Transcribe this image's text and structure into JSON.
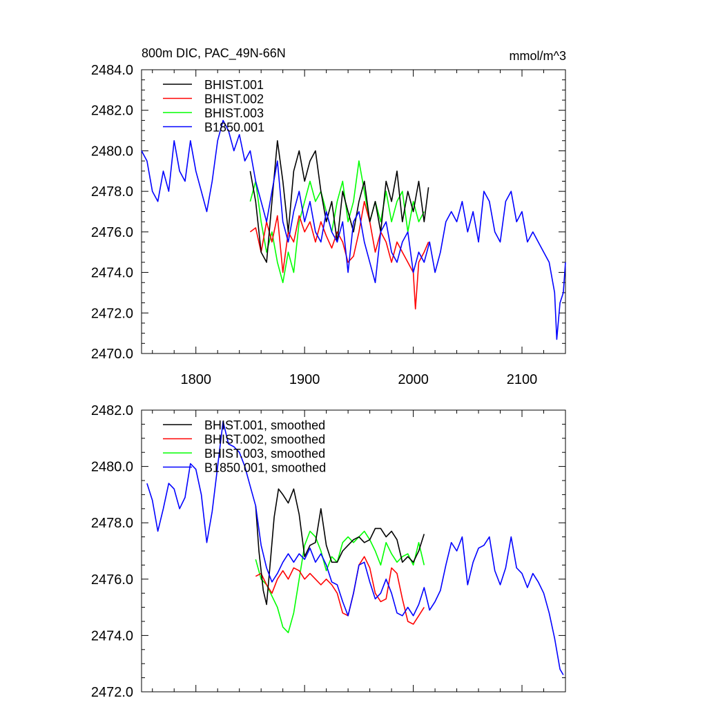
{
  "chart_data": [
    {
      "type": "line",
      "title": "800m DIC, PAC_49N-66N",
      "units": "mmol/m^3",
      "xlim": [
        1750,
        2140
      ],
      "ylim": [
        2470,
        2484
      ],
      "yticks": [
        2470,
        2472,
        2474,
        2476,
        2478,
        2480,
        2482,
        2484
      ],
      "ytick_labels": [
        "2470.0",
        "2472.0",
        "2474.0",
        "2476.0",
        "2478.0",
        "2480.0",
        "2482.0",
        "2484.0"
      ],
      "xticks": [
        1800,
        1900,
        2000,
        2100
      ],
      "xtick_labels": [
        "1800",
        "1900",
        "2000",
        "2100"
      ],
      "legend": "top-left",
      "series": [
        {
          "name": "BHIST.001",
          "color": "#000000",
          "x": [
            1850,
            1855,
            1860,
            1865,
            1870,
            1875,
            1880,
            1885,
            1890,
            1895,
            1900,
            1905,
            1910,
            1915,
            1920,
            1925,
            1930,
            1935,
            1940,
            1945,
            1950,
            1955,
            1960,
            1965,
            1970,
            1975,
            1980,
            1985,
            1990,
            1995,
            2000,
            2005,
            2010,
            2014
          ],
          "y": [
            2479.0,
            2477.5,
            2475.0,
            2474.5,
            2477.5,
            2480.5,
            2478.5,
            2476.0,
            2479.0,
            2480.0,
            2478.5,
            2479.5,
            2480.0,
            2478.0,
            2476.5,
            2477.5,
            2475.5,
            2478.0,
            2477.0,
            2476.0,
            2477.5,
            2478.5,
            2476.5,
            2477.5,
            2476.0,
            2478.5,
            2477.5,
            2479.0,
            2476.5,
            2478.0,
            2477.0,
            2478.5,
            2476.5,
            2478.2
          ]
        },
        {
          "name": "BHIST.002",
          "color": "#ff0000",
          "x": [
            1850,
            1855,
            1860,
            1865,
            1870,
            1875,
            1880,
            1885,
            1890,
            1895,
            1900,
            1905,
            1910,
            1915,
            1920,
            1925,
            1930,
            1935,
            1940,
            1945,
            1950,
            1955,
            1960,
            1965,
            1970,
            1975,
            1980,
            1985,
            1990,
            1995,
            2000,
            2002,
            2005,
            2010,
            2014
          ],
          "y": [
            2476.0,
            2476.2,
            2475.0,
            2476.5,
            2475.5,
            2476.8,
            2474.0,
            2476.0,
            2475.5,
            2476.8,
            2476.0,
            2476.5,
            2475.5,
            2476.5,
            2475.8,
            2475.2,
            2476.0,
            2475.5,
            2474.5,
            2474.8,
            2476.0,
            2477.5,
            2476.5,
            2475.0,
            2476.0,
            2475.5,
            2474.5,
            2475.5,
            2475.0,
            2474.5,
            2474.0,
            2472.2,
            2474.5,
            2475.0,
            2475.5
          ]
        },
        {
          "name": "BHIST.003",
          "color": "#00ff00",
          "x": [
            1850,
            1855,
            1860,
            1865,
            1870,
            1875,
            1880,
            1885,
            1890,
            1895,
            1900,
            1905,
            1910,
            1915,
            1920,
            1925,
            1930,
            1935,
            1940,
            1945,
            1950,
            1955,
            1960,
            1965,
            1970,
            1975,
            1980,
            1985,
            1990,
            1995,
            2000,
            2005,
            2010
          ],
          "y": [
            2477.5,
            2478.5,
            2476.5,
            2475.0,
            2476.0,
            2474.5,
            2473.5,
            2475.0,
            2474.0,
            2476.5,
            2477.5,
            2478.5,
            2477.5,
            2478.0,
            2477.0,
            2476.0,
            2477.5,
            2478.5,
            2476.5,
            2477.5,
            2479.5,
            2478.0,
            2476.5,
            2477.5,
            2476.5,
            2478.0,
            2476.5,
            2477.5,
            2478.0,
            2476.0,
            2477.5,
            2476.5,
            2477.0
          ]
        },
        {
          "name": "B1850.001",
          "color": "#0000ff",
          "x": [
            1750,
            1755,
            1760,
            1765,
            1770,
            1775,
            1780,
            1785,
            1790,
            1795,
            1800,
            1805,
            1810,
            1815,
            1820,
            1825,
            1830,
            1835,
            1840,
            1845,
            1850,
            1855,
            1860,
            1865,
            1870,
            1875,
            1880,
            1885,
            1890,
            1895,
            1900,
            1905,
            1910,
            1915,
            1920,
            1925,
            1930,
            1935,
            1940,
            1945,
            1950,
            1955,
            1960,
            1965,
            1970,
            1975,
            1980,
            1985,
            1990,
            1995,
            2000,
            2005,
            2010,
            2015,
            2020,
            2025,
            2030,
            2035,
            2040,
            2045,
            2050,
            2055,
            2060,
            2065,
            2070,
            2075,
            2080,
            2085,
            2090,
            2095,
            2100,
            2105,
            2110,
            2115,
            2120,
            2125,
            2130,
            2132,
            2135,
            2138,
            2140
          ],
          "y": [
            2480.0,
            2479.5,
            2478.0,
            2477.5,
            2479.0,
            2478.0,
            2480.5,
            2479.0,
            2478.5,
            2480.5,
            2479.0,
            2478.0,
            2477.0,
            2478.5,
            2480.5,
            2481.5,
            2481.0,
            2480.0,
            2480.8,
            2479.5,
            2480.0,
            2478.5,
            2477.5,
            2476.5,
            2478.0,
            2479.5,
            2476.5,
            2475.5,
            2477.0,
            2478.0,
            2476.5,
            2477.5,
            2476.0,
            2475.5,
            2477.0,
            2476.0,
            2475.5,
            2476.5,
            2474.0,
            2476.5,
            2477.0,
            2475.5,
            2474.5,
            2473.5,
            2476.0,
            2476.5,
            2475.0,
            2474.5,
            2475.5,
            2476.0,
            2474.0,
            2475.0,
            2474.5,
            2475.5,
            2474.0,
            2475.0,
            2476.5,
            2477.0,
            2476.5,
            2477.5,
            2476.0,
            2477.0,
            2475.5,
            2478.0,
            2477.5,
            2476.0,
            2475.5,
            2477.5,
            2478.0,
            2476.5,
            2477.0,
            2475.5,
            2476.0,
            2475.5,
            2475.0,
            2474.5,
            2473.0,
            2470.7,
            2472.5,
            2473.0,
            2474.5
          ]
        }
      ]
    },
    {
      "type": "line",
      "title": "",
      "xlim": [
        1750,
        2140
      ],
      "ylim": [
        2472,
        2482
      ],
      "yticks": [
        2472,
        2474,
        2476,
        2478,
        2480,
        2482
      ],
      "ytick_labels": [
        "2472.0",
        "2474.0",
        "2476.0",
        "2478.0",
        "2480.0",
        "2482.0"
      ],
      "xticks": [
        1800,
        1900,
        2000,
        2100
      ],
      "xtick_labels": [
        "",
        "",
        "",
        ""
      ],
      "legend": "top-left",
      "series": [
        {
          "name": "BHIST.001, smoothed",
          "color": "#000000",
          "x": [
            1855,
            1858,
            1862,
            1865,
            1868,
            1872,
            1876,
            1880,
            1885,
            1890,
            1895,
            1900,
            1905,
            1910,
            1915,
            1920,
            1925,
            1930,
            1935,
            1940,
            1945,
            1950,
            1955,
            1960,
            1965,
            1970,
            1975,
            1980,
            1985,
            1990,
            1995,
            2000,
            2005,
            2010
          ],
          "y": [
            2478.6,
            2477.0,
            2475.6,
            2475.1,
            2476.4,
            2478.2,
            2479.2,
            2479.0,
            2478.7,
            2479.2,
            2478.3,
            2476.8,
            2477.2,
            2477.3,
            2478.5,
            2477.2,
            2476.6,
            2476.6,
            2477.0,
            2477.2,
            2477.4,
            2477.5,
            2477.3,
            2477.4,
            2477.8,
            2477.8,
            2477.5,
            2477.7,
            2477.4,
            2476.6,
            2476.8,
            2476.6,
            2477.0,
            2477.6
          ]
        },
        {
          "name": "BHIST.002, smoothed",
          "color": "#ff0000",
          "x": [
            1855,
            1860,
            1865,
            1870,
            1875,
            1880,
            1885,
            1890,
            1895,
            1900,
            1905,
            1910,
            1915,
            1920,
            1925,
            1930,
            1935,
            1940,
            1945,
            1950,
            1955,
            1960,
            1965,
            1970,
            1975,
            1980,
            1985,
            1990,
            1995,
            2000,
            2005,
            2010
          ],
          "y": [
            2476.1,
            2476.2,
            2475.8,
            2475.5,
            2476.0,
            2476.3,
            2476.0,
            2476.4,
            2476.3,
            2476.0,
            2476.2,
            2476.0,
            2475.8,
            2476.0,
            2475.8,
            2475.5,
            2474.8,
            2474.7,
            2475.5,
            2476.5,
            2476.8,
            2476.4,
            2475.5,
            2475.2,
            2475.3,
            2476.4,
            2476.2,
            2475.3,
            2474.5,
            2474.4,
            2474.7,
            2475.0
          ]
        },
        {
          "name": "BHIST.003, smoothed",
          "color": "#00ff00",
          "x": [
            1855,
            1860,
            1865,
            1870,
            1875,
            1880,
            1885,
            1890,
            1895,
            1900,
            1905,
            1910,
            1915,
            1920,
            1925,
            1930,
            1935,
            1940,
            1945,
            1950,
            1955,
            1960,
            1965,
            1970,
            1975,
            1980,
            1985,
            1990,
            1995,
            2000,
            2005,
            2010
          ],
          "y": [
            2476.7,
            2476.0,
            2475.8,
            2475.4,
            2475.0,
            2474.3,
            2474.1,
            2474.8,
            2476.0,
            2477.2,
            2477.7,
            2477.5,
            2477.0,
            2476.3,
            2476.8,
            2476.6,
            2477.3,
            2477.5,
            2477.3,
            2477.5,
            2477.7,
            2477.4,
            2477.0,
            2476.5,
            2477.3,
            2476.9,
            2476.6,
            2476.8,
            2476.9,
            2476.5,
            2477.3,
            2476.5
          ]
        },
        {
          "name": "B1850.001, smoothed",
          "color": "#0000ff",
          "x": [
            1755,
            1760,
            1765,
            1770,
            1775,
            1780,
            1785,
            1790,
            1795,
            1800,
            1805,
            1810,
            1815,
            1820,
            1825,
            1830,
            1835,
            1840,
            1845,
            1850,
            1855,
            1860,
            1865,
            1870,
            1875,
            1880,
            1885,
            1890,
            1895,
            1900,
            1905,
            1910,
            1915,
            1920,
            1925,
            1930,
            1935,
            1940,
            1945,
            1950,
            1955,
            1960,
            1965,
            1970,
            1975,
            1980,
            1985,
            1990,
            1995,
            2000,
            2005,
            2010,
            2015,
            2020,
            2025,
            2030,
            2035,
            2040,
            2045,
            2050,
            2055,
            2060,
            2065,
            2070,
            2075,
            2080,
            2085,
            2090,
            2095,
            2100,
            2105,
            2110,
            2115,
            2120,
            2125,
            2130,
            2135,
            2138
          ],
          "y": [
            2479.4,
            2478.8,
            2477.7,
            2478.5,
            2479.4,
            2479.2,
            2478.5,
            2478.9,
            2480.1,
            2479.9,
            2479.0,
            2477.3,
            2478.4,
            2480.0,
            2481.6,
            2480.8,
            2480.7,
            2480.5,
            2480.0,
            2479.3,
            2478.6,
            2477.2,
            2476.4,
            2475.9,
            2476.2,
            2476.6,
            2476.9,
            2476.6,
            2476.9,
            2476.7,
            2477.1,
            2476.6,
            2476.9,
            2476.5,
            2475.9,
            2475.8,
            2475.2,
            2474.7,
            2475.5,
            2476.5,
            2476.6,
            2475.9,
            2475.3,
            2475.5,
            2476.0,
            2475.5,
            2474.8,
            2474.7,
            2475.0,
            2474.7,
            2475.1,
            2475.7,
            2474.9,
            2475.2,
            2475.6,
            2476.5,
            2477.3,
            2477.0,
            2477.5,
            2475.8,
            2476.6,
            2477.1,
            2477.2,
            2477.5,
            2476.3,
            2475.8,
            2476.4,
            2477.5,
            2476.4,
            2476.2,
            2475.7,
            2476.2,
            2475.9,
            2475.5,
            2474.8,
            2473.9,
            2472.8,
            2472.6
          ]
        }
      ]
    }
  ]
}
